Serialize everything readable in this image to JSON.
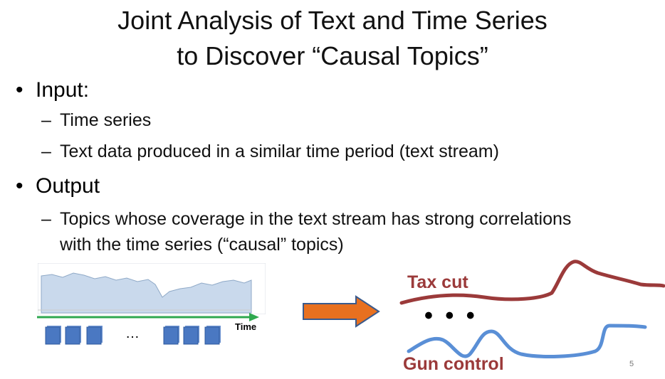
{
  "slide": {
    "title_line1": "Joint Analysis of Text and Time Series",
    "title_line2": "to Discover “Causal Topics”",
    "bullets": [
      {
        "label": "Input:",
        "subs": [
          "Time series",
          "Text data produced in a similar time period (text stream)"
        ]
      },
      {
        "label": "Output",
        "subs": [
          "Topics whose coverage in the text stream has strong correlations",
          "with the time series (“causal” topics)"
        ]
      }
    ],
    "figure": {
      "time_label": "Time",
      "ellipsis": "…",
      "dots": "• • •",
      "topic_labels": [
        "Tax cut",
        "Gun control"
      ]
    },
    "page_number": "5"
  },
  "colors": {
    "arrow_green": "#2fa84f",
    "doc_blue": "#4a78c2",
    "big_arrow_fill": "#e8701f",
    "big_arrow_border": "#3a5a8c",
    "tax_curve": "#9b3a3a",
    "gun_curve": "#5a8fd6",
    "label_red": "#9b3a3a"
  }
}
